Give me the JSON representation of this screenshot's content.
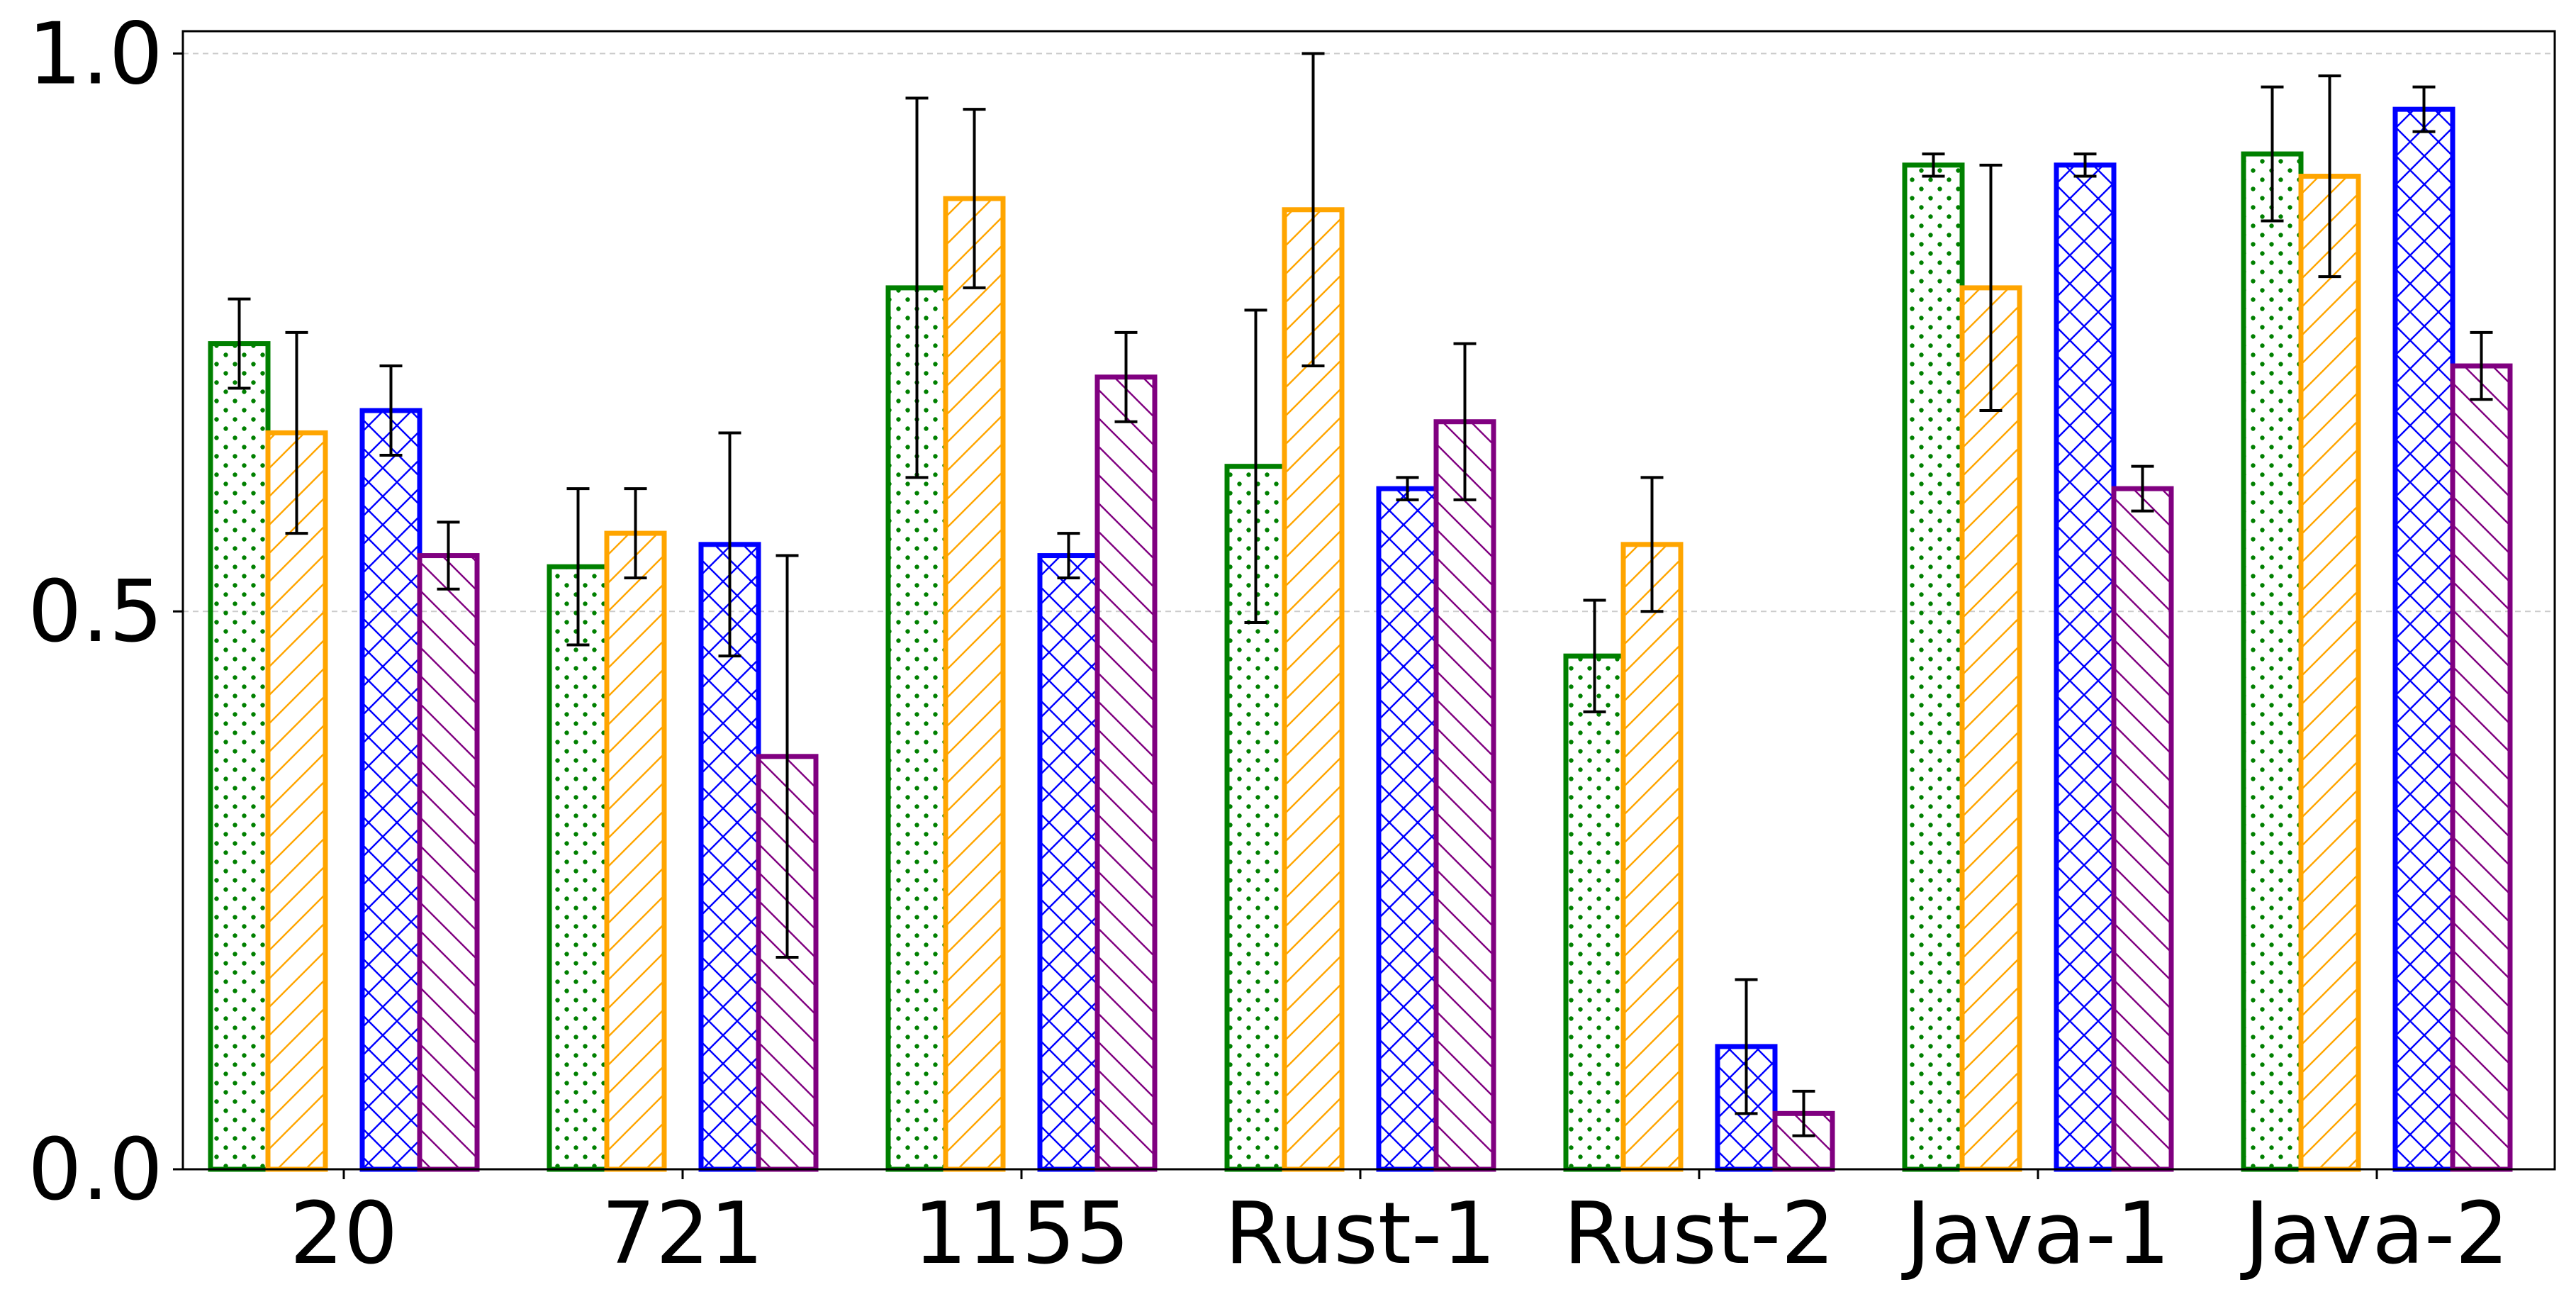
{
  "chart_data": {
    "type": "bar",
    "title": "",
    "xlabel": "",
    "ylabel": "",
    "categories": [
      "20",
      "721",
      "1155",
      "Rust-1",
      "Rust-2",
      "Java-1",
      "Java-2"
    ],
    "ylim": [
      0,
      1.02
    ],
    "yticks": [
      0.0,
      0.5,
      1.0
    ],
    "ytick_labels": [
      "0.0",
      "0.5",
      "1.0"
    ],
    "grid": "horizontal dashed",
    "legend": "none",
    "series": [
      {
        "color": "#008000",
        "hatch": "dots",
        "values": [
          0.74,
          0.54,
          0.79,
          0.63,
          0.46,
          0.9,
          0.91
        ],
        "err_low": [
          0.7,
          0.47,
          0.62,
          0.49,
          0.41,
          0.89,
          0.85
        ],
        "err_high": [
          0.78,
          0.61,
          0.96,
          0.77,
          0.51,
          0.91,
          0.97
        ]
      },
      {
        "color": "#FFA500",
        "hatch": "forward-diagonal",
        "values": [
          0.66,
          0.57,
          0.87,
          0.86,
          0.56,
          0.79,
          0.89
        ],
        "err_low": [
          0.57,
          0.53,
          0.79,
          0.72,
          0.5,
          0.68,
          0.8
        ],
        "err_high": [
          0.75,
          0.61,
          0.95,
          1.0,
          0.62,
          0.9,
          0.98
        ]
      },
      {
        "color": "#0000FF",
        "hatch": "cross-hatch",
        "values": [
          0.68,
          0.56,
          0.55,
          0.61,
          0.11,
          0.9,
          0.95
        ],
        "err_low": [
          0.64,
          0.46,
          0.53,
          0.6,
          0.05,
          0.89,
          0.93
        ],
        "err_high": [
          0.72,
          0.66,
          0.57,
          0.62,
          0.17,
          0.91,
          0.97
        ]
      },
      {
        "color": "#800080",
        "hatch": "back-diagonal",
        "values": [
          0.55,
          0.37,
          0.71,
          0.67,
          0.05,
          0.61,
          0.72
        ],
        "err_low": [
          0.52,
          0.19,
          0.67,
          0.6,
          0.03,
          0.59,
          0.69
        ],
        "err_high": [
          0.58,
          0.55,
          0.75,
          0.74,
          0.07,
          0.63,
          0.75
        ]
      }
    ]
  }
}
